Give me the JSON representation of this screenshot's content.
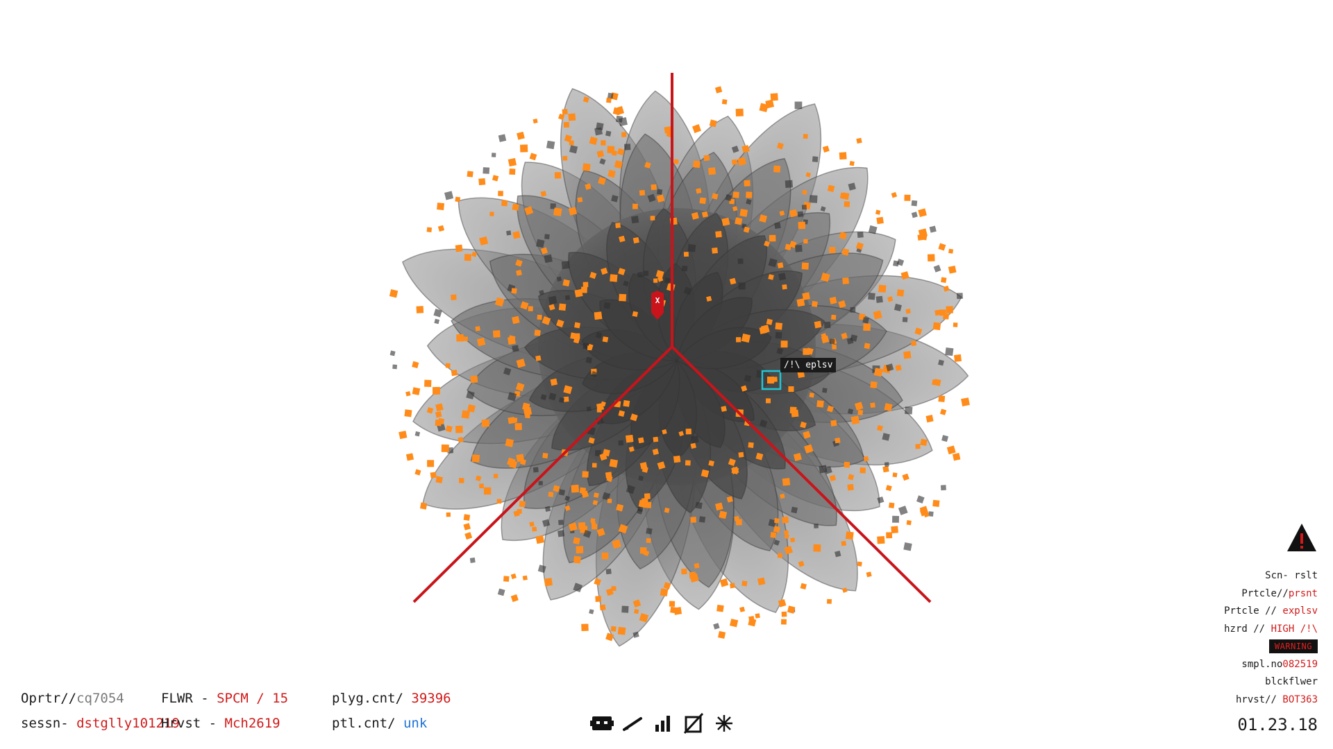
{
  "scan": {
    "marker_label": "/!\\ eplsv",
    "axis_marker": "X"
  },
  "bottom_left": {
    "operator_label": "Oprtr//",
    "operator_value": "cq7054",
    "session_label": "sessn-",
    "session_value": "dstglly101219",
    "flower_label": "FLWR -",
    "flower_value": "SPCM / 15",
    "harvest_label": "Hrvst -",
    "harvest_value": "Mch2619",
    "polygon_label": "plyg.cnt/",
    "polygon_value": "39396",
    "particle_label": "ptl.cnt/",
    "particle_value": "unk"
  },
  "toolbar": {
    "items": [
      {
        "icon": "robot-icon"
      },
      {
        "icon": "pen-icon"
      },
      {
        "icon": "bar-chart-icon"
      },
      {
        "icon": "cancel-box-icon"
      },
      {
        "icon": "asterisk-icon"
      }
    ]
  },
  "right_panel": {
    "alert_icon": "warning-triangle-icon",
    "scan_result": "Scn- rslt",
    "particle_label": "Prtcle//",
    "particle_value": "prsnt",
    "particle2_label": "Prtcle //",
    "particle2_value": "explsv",
    "hazard_label": "hzrd //",
    "hazard_value": "HIGH /!\\",
    "warning": "WARNING",
    "sample_label": "smpl.no",
    "sample_value": "082519",
    "species": "blckflwer",
    "harvest_label": "hrvst//",
    "harvest_value": "BOT363"
  },
  "date": "01.23.18",
  "colors": {
    "accent_red": "#d11a1a",
    "particle_orange": "#ff8c1a",
    "selection_cyan": "#22c6d6",
    "petal_grey": "#5a5a5a"
  }
}
